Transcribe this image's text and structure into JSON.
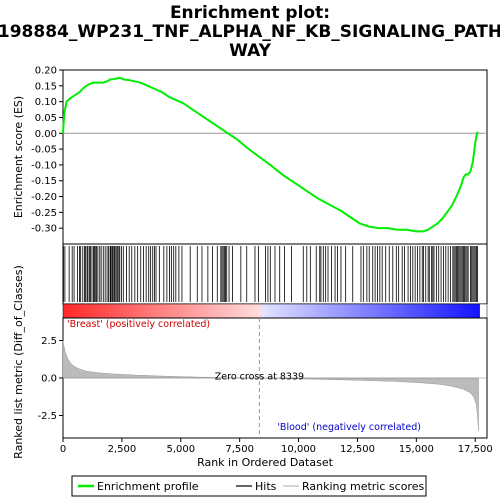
{
  "chart_data": {
    "type": "line",
    "title": "Enrichment plot:\n198884_WP231_TNF_ALPHA_NF_KB_SIGNALING_PATH\nWAY",
    "top_panel": {
      "ylabel": "Enrichment score (ES)",
      "ylim": [
        -0.35,
        0.2
      ],
      "yticks": [
        "0.20",
        "0.15",
        "0.10",
        "0.05",
        "0.00",
        "-0.05",
        "-0.10",
        "-0.15",
        "-0.20",
        "-0.25",
        "-0.30"
      ],
      "ytick_values": [
        0.2,
        0.15,
        0.1,
        0.05,
        0.0,
        -0.05,
        -0.1,
        -0.15,
        -0.2,
        -0.25,
        -0.3
      ],
      "series": [
        {
          "name": "Enrichment profile",
          "color": "#00ee00",
          "x": [
            0,
            50,
            150,
            300,
            500,
            700,
            900,
            1100,
            1300,
            1500,
            1700,
            1900,
            2000,
            2200,
            2400,
            2600,
            2800,
            3000,
            3300,
            3600,
            3900,
            4200,
            4500,
            4800,
            5100,
            5400,
            5800,
            6200,
            6600,
            7000,
            7400,
            7800,
            8339,
            8800,
            9300,
            9800,
            10300,
            10800,
            11300,
            11800,
            12200,
            12600,
            13000,
            13400,
            13800,
            14200,
            14600,
            15000,
            15300,
            15500,
            15700,
            15900,
            16100,
            16300,
            16500,
            16700,
            16900,
            17000,
            17100,
            17200,
            17300,
            17400,
            17450,
            17500,
            17550,
            17600
          ],
          "y": [
            0.0,
            0.06,
            0.1,
            0.11,
            0.12,
            0.13,
            0.145,
            0.155,
            0.16,
            0.16,
            0.16,
            0.165,
            0.17,
            0.172,
            0.175,
            0.17,
            0.168,
            0.165,
            0.16,
            0.15,
            0.14,
            0.13,
            0.115,
            0.105,
            0.095,
            0.08,
            0.06,
            0.04,
            0.02,
            0.0,
            -0.02,
            -0.045,
            -0.075,
            -0.1,
            -0.13,
            -0.155,
            -0.18,
            -0.205,
            -0.225,
            -0.245,
            -0.265,
            -0.285,
            -0.295,
            -0.3,
            -0.3,
            -0.305,
            -0.305,
            -0.31,
            -0.31,
            -0.305,
            -0.295,
            -0.285,
            -0.27,
            -0.25,
            -0.23,
            -0.2,
            -0.165,
            -0.14,
            -0.13,
            -0.13,
            -0.12,
            -0.09,
            -0.06,
            -0.03,
            -0.01,
            0.005
          ]
        }
      ]
    },
    "hits": [
      20,
      80,
      260,
      390,
      470,
      610,
      700,
      750,
      840,
      910,
      960,
      1020,
      1060,
      1120,
      1170,
      1230,
      1290,
      1330,
      1370,
      1420,
      1480,
      1560,
      1620,
      1710,
      1790,
      1870,
      1930,
      2000,
      2030,
      2080,
      2120,
      2170,
      2210,
      2260,
      2320,
      2370,
      2410,
      2480,
      2560,
      2700,
      2810,
      2920,
      3050,
      3170,
      3300,
      3420,
      3530,
      3640,
      3720,
      3810,
      3880,
      3950,
      4090,
      4280,
      4410,
      4520,
      4600,
      4700,
      4790,
      4920,
      5050,
      5400,
      5700,
      5900,
      6150,
      6350,
      6550,
      6700,
      6750,
      6800,
      6850,
      6900,
      6950,
      7050,
      7200,
      7550,
      7800,
      8150,
      8300,
      8600,
      8700,
      8800,
      9000,
      9200,
      9400,
      9700,
      10200,
      10350,
      10500,
      10750,
      10900,
      10950,
      11050,
      11150,
      11250,
      11400,
      11550,
      11650,
      11800,
      12000,
      12300,
      12650,
      12750,
      12900,
      13000,
      13150,
      13250,
      13350,
      13450,
      13550,
      13700,
      13850,
      14000,
      14150,
      14250,
      14400,
      14500,
      14650,
      14750,
      14850,
      14950,
      15050,
      15150,
      15250,
      15300,
      15400,
      15500,
      15550,
      15650,
      15700,
      15750,
      15850,
      15950,
      16050,
      16150,
      16250,
      16350,
      16450,
      16550,
      16600,
      16650,
      16700,
      16750,
      16800,
      16850,
      16900,
      16950,
      17000,
      17050,
      17100,
      17150,
      17200,
      17300,
      17350,
      17400,
      17450,
      17500,
      17550,
      17600
    ],
    "bottom_panel": {
      "ylabel": "Ranked list metric (Diff_of_Classes)",
      "ylim": [
        -4,
        4
      ],
      "yticks": [
        "2.5",
        "0.0",
        "-2.5"
      ],
      "ytick_values": [
        2.5,
        0.0,
        -2.5
      ],
      "x": [
        0,
        30,
        100,
        200,
        350,
        500,
        700,
        1000,
        1500,
        2000,
        3000,
        4000,
        5000,
        6000,
        7000,
        8339,
        9500,
        11000,
        12500,
        14000,
        15000,
        16000,
        16500,
        17000,
        17300,
        17450,
        17550,
        17600,
        17640
      ],
      "y": [
        2.5,
        2.2,
        1.7,
        1.3,
        0.95,
        0.75,
        0.6,
        0.45,
        0.35,
        0.28,
        0.2,
        0.14,
        0.09,
        0.05,
        0.02,
        0.0,
        -0.04,
        -0.09,
        -0.15,
        -0.22,
        -0.3,
        -0.42,
        -0.55,
        -0.75,
        -1.0,
        -1.3,
        -1.8,
        -2.6,
        -3.5
      ],
      "zero_cross_label": "Zero cross at 8339",
      "zero_cross": 8339,
      "positive_label": "'Breast' (positively correlated)",
      "negative_label": "'Blood' (negatively correlated)"
    },
    "xlabel": "Rank in Ordered Dataset",
    "xlim": [
      0,
      18000
    ],
    "xticks": [
      "0",
      "2,500",
      "5,000",
      "7,500",
      "10,000",
      "12,500",
      "15,000",
      "17,500"
    ],
    "xtick_values": [
      0,
      2500,
      5000,
      7500,
      10000,
      12500,
      15000,
      17500
    ],
    "legend": {
      "placement": "bottom",
      "items": [
        "Enrichment profile",
        "Hits",
        "Ranking metric scores"
      ]
    },
    "colors": {
      "enrichment": "#00ee00",
      "hits": "#000000",
      "metric": "#bbbbbb",
      "positive": "#ff0000",
      "negative": "#0000ff",
      "zero_line": "#999999"
    }
  }
}
